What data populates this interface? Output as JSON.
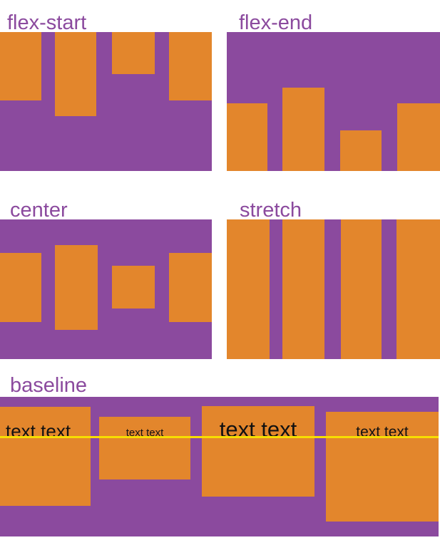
{
  "colors": {
    "background": "#FFFFFF",
    "container_purple": "#8B4A9E",
    "item_orange": "#E3862C",
    "baseline_line_yellow": "#F7DE00",
    "title_text": "#8B4A9E",
    "item_text_black": "#111111"
  },
  "panels": {
    "flex_start": {
      "title": "flex-start",
      "item_count": 4
    },
    "flex_end": {
      "title": "flex-end",
      "item_count": 4
    },
    "center": {
      "title": "center",
      "item_count": 4
    },
    "stretch": {
      "title": "stretch",
      "item_count": 4
    },
    "baseline": {
      "title": "baseline",
      "items": [
        {
          "text": "text text",
          "text_size": "large"
        },
        {
          "text": "text text",
          "text_size": "small"
        },
        {
          "text": "text text",
          "text_size": "x-large"
        },
        {
          "text": "text text",
          "text_size": "medium"
        }
      ]
    }
  }
}
